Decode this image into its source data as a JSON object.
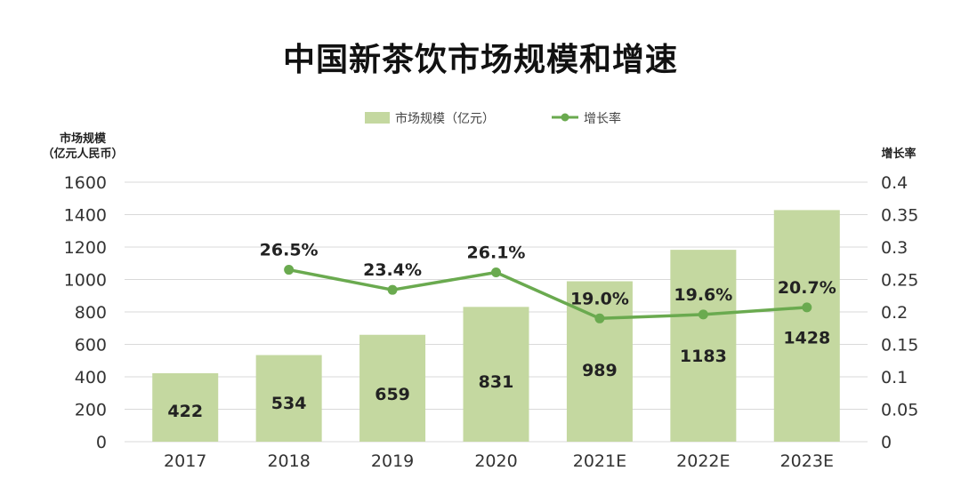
{
  "chart_data": {
    "type": "bar+line",
    "title": "中国新茶饮市场规模和增速",
    "categories": [
      "2017",
      "2018",
      "2019",
      "2020",
      "2021E",
      "2022E",
      "2023E"
    ],
    "series": [
      {
        "name": "市场规模（亿元）",
        "type": "bar",
        "axis": "left",
        "values": [
          422,
          534,
          659,
          831,
          989,
          1183,
          1428
        ],
        "labels": [
          "422",
          "534",
          "659",
          "831",
          "989",
          "1183",
          "1428"
        ],
        "color": "#c4d8a0"
      },
      {
        "name": "增长率",
        "type": "line",
        "axis": "right",
        "values": [
          null,
          0.265,
          0.234,
          0.261,
          0.19,
          0.196,
          0.207
        ],
        "labels": [
          "",
          "26.5%",
          "23.4%",
          "26.1%",
          "19.0%",
          "19.6%",
          "20.7%"
        ],
        "color": "#6aaa4f"
      }
    ],
    "ylabel_left": [
      "市场规模",
      "（亿元人民币）"
    ],
    "ylabel_right": "增长率",
    "ylim_left": [
      0,
      1600
    ],
    "yticks_left": [
      "0",
      "200",
      "400",
      "600",
      "800",
      "1000",
      "1200",
      "1400",
      "1600"
    ],
    "ylim_right": [
      0,
      0.4
    ],
    "yticks_right": [
      "0",
      "0.05",
      "0.1",
      "0.15",
      "0.2",
      "0.25",
      "0.3",
      "0.35",
      "0.4"
    ],
    "legend": [
      "市场规模（亿元）",
      "增长率"
    ],
    "legend_position": "top-center",
    "grid": true
  }
}
